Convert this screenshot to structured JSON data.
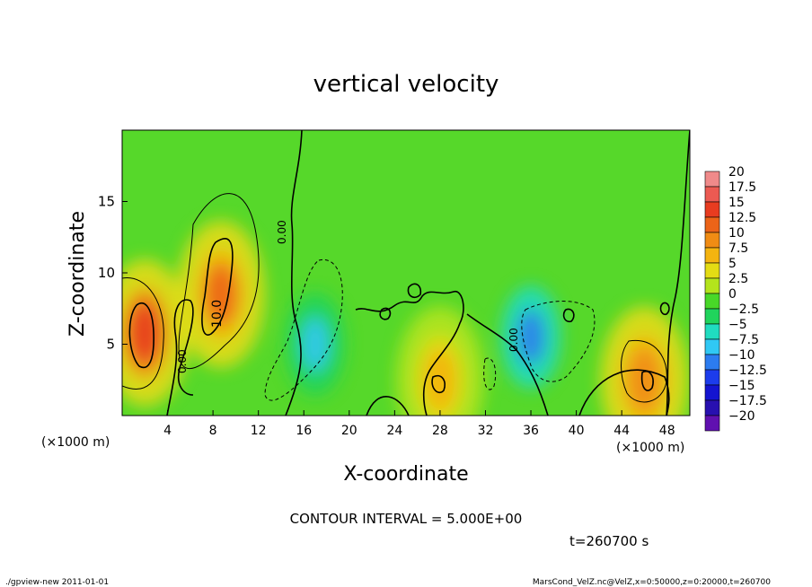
{
  "chart_data": {
    "type": "heatmap",
    "title": "vertical velocity",
    "xlabel": "X-coordinate",
    "ylabel": "Z-coordinate",
    "x_units": "(×1000 m)",
    "y_units": "(×1000 m)",
    "xlim": [
      0,
      50
    ],
    "ylim": [
      0,
      20
    ],
    "x_ticks": [
      "4",
      "8",
      "12",
      "16",
      "20",
      "24",
      "28",
      "32",
      "36",
      "40",
      "44",
      "48"
    ],
    "y_ticks": [
      "5",
      "10",
      "15"
    ],
    "colorbar": {
      "levels": [
        "20",
        "17.5",
        "15",
        "12.5",
        "10",
        "7.5",
        "5",
        "2.5",
        "0",
        "−2.5",
        "−5",
        "−7.5",
        "−10",
        "−12.5",
        "−15",
        "−17.5",
        "−20"
      ],
      "colors": [
        "#f08a8a",
        "#ec5a52",
        "#e83c20",
        "#ec6418",
        "#f08c14",
        "#f4b410",
        "#e4dc14",
        "#b4e41c",
        "#48d828",
        "#20d45c",
        "#20dcc0",
        "#30c8f4",
        "#2c7cf0",
        "#1c3cec",
        "#1414d0",
        "#2810b0",
        "#6010b0"
      ]
    },
    "features": [
      {
        "kind": "max",
        "x": 2.0,
        "z": 5.8,
        "value": 15.0
      },
      {
        "kind": "max",
        "x": 8.7,
        "z": 8.5,
        "value": 12.5
      },
      {
        "kind": "max",
        "x": 28.0,
        "z": 2.5,
        "value": 7.5
      },
      {
        "kind": "max",
        "x": 46.0,
        "z": 2.5,
        "value": 10.0
      },
      {
        "kind": "min",
        "x": 17.0,
        "z": 5.0,
        "value": -7.5
      },
      {
        "kind": "min",
        "x": 36.0,
        "z": 5.5,
        "value": -10.0
      }
    ],
    "contour_labels": [
      "0.00",
      "10.0",
      "0.00",
      "0.00"
    ],
    "contour_interval": "CONTOUR INTERVAL = 5.000E+00",
    "time": "t=260700 s"
  },
  "footer": {
    "left": "./gpview-new  2011-01-01",
    "right": "MarsCond_VelZ.nc@VelZ,x=0:50000,z=0:20000,t=260700"
  }
}
